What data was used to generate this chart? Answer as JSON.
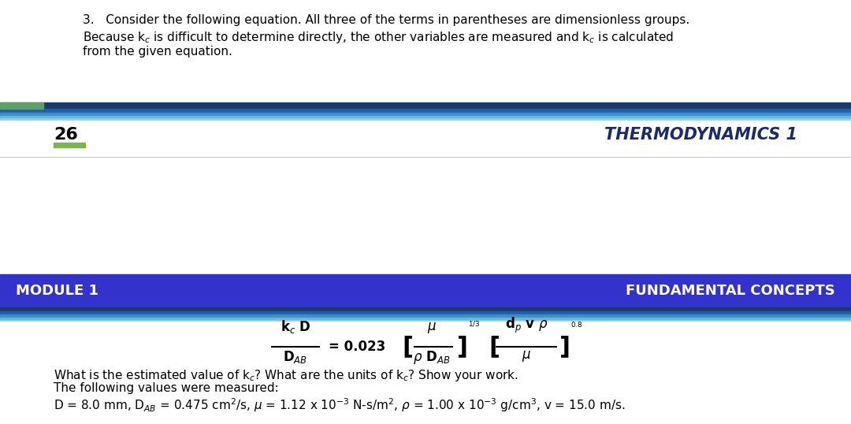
{
  "bg_color": "#ffffff",
  "intro_text_line1": "3.   Consider the following equation. All three of the terms in parentheses are dimensionless groups.",
  "intro_text_line2_a": "Because k",
  "intro_text_line2_b": " is difficult to determine directly, the other variables are measured and k",
  "intro_text_line2_c": " is calculated",
  "intro_text_line3": "from the given equation.",
  "page_number": "26",
  "header_title": "THERMODYNAMICS 1",
  "header_title_color": "#1a2a6c",
  "green_bar_color": "#7ab648",
  "bottom_banner_color": "#3333cc",
  "module_label": "MODULE 1",
  "concept_label": "FUNDAMENTAL CONCEPTS",
  "banner_text_color": "#ffffff",
  "divider_color": "#bbbbbb",
  "text_color": "#000000",
  "stripe_top": [
    [
      "#1b3a6b",
      7
    ],
    [
      "#1e5fa8",
      5
    ],
    [
      "#3a8fc8",
      4
    ],
    [
      "#6ab4d8",
      3
    ],
    [
      "#8ecde0",
      2
    ],
    [
      "#5e9e6e",
      4
    ]
  ],
  "stripe_bottom": [
    [
      "#1b3a6b",
      5
    ],
    [
      "#1e5fa8",
      4
    ],
    [
      "#3a8fc8",
      3
    ],
    [
      "#6ab4d8",
      3
    ]
  ],
  "font_size_intro": 11,
  "font_size_header": 15,
  "font_size_banner": 13,
  "font_size_eq": 11,
  "font_size_body": 11
}
